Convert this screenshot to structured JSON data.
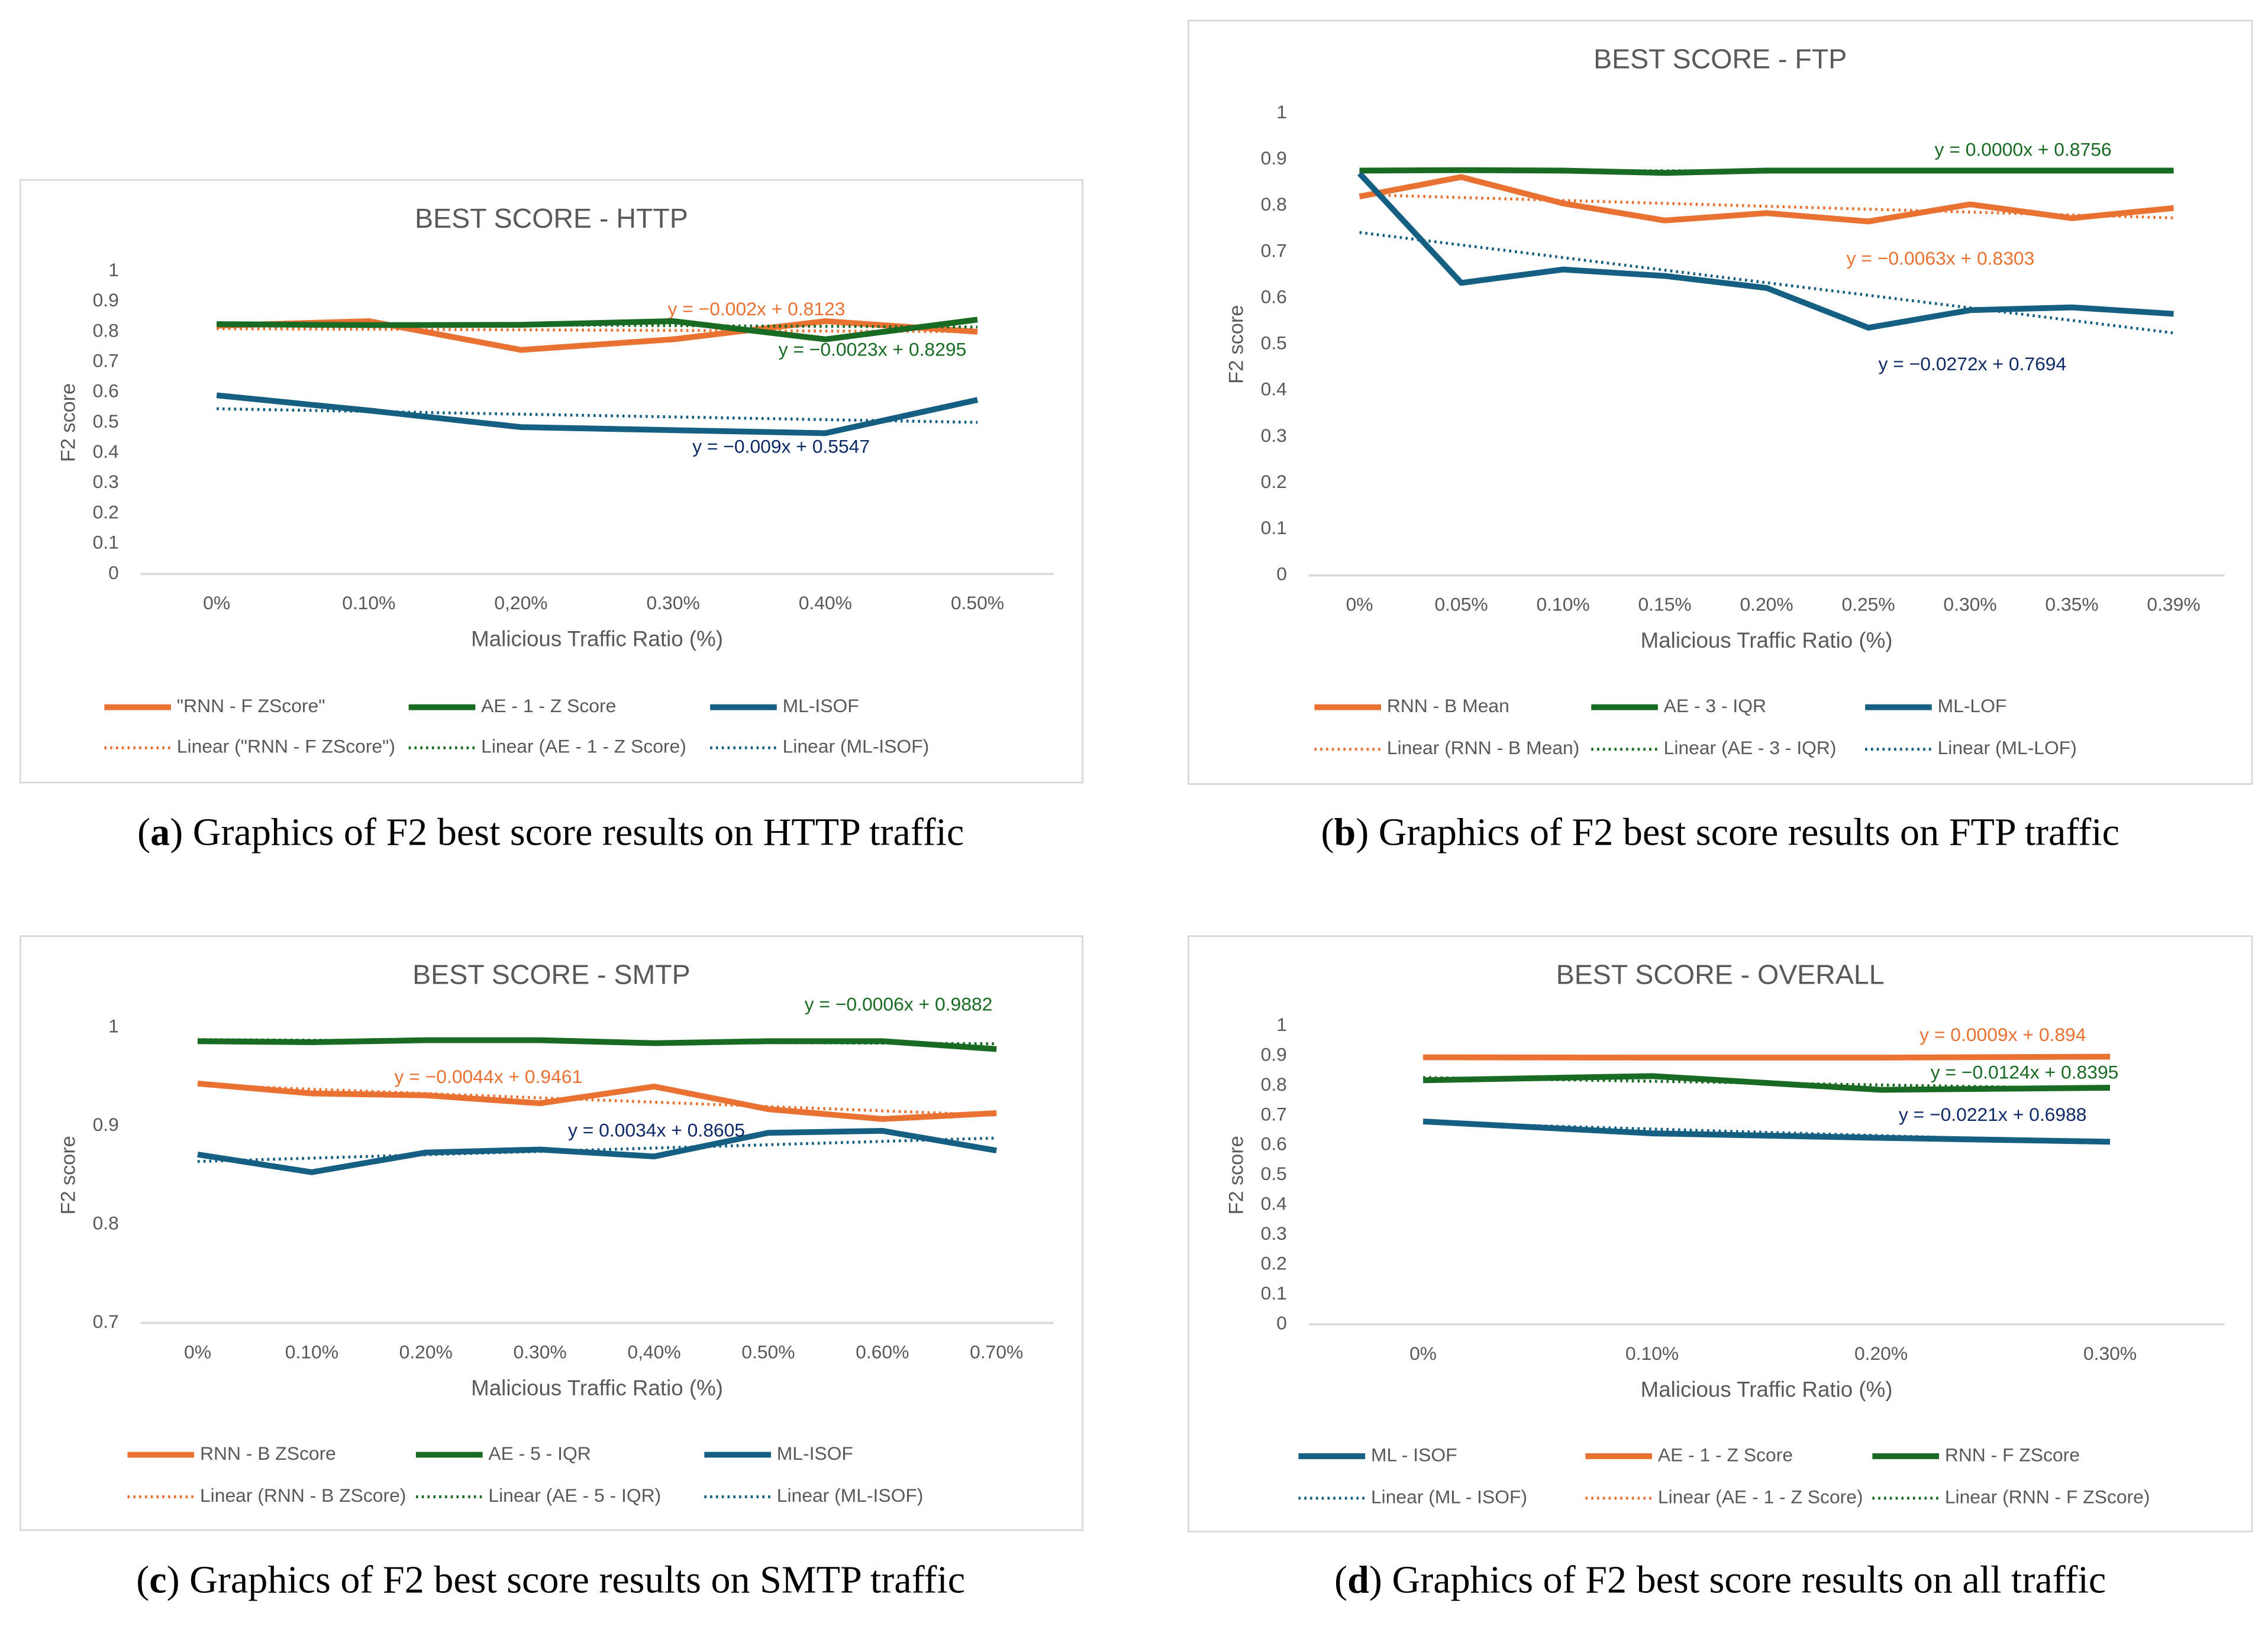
{
  "colors": {
    "orange": "#E97132",
    "green": "#196B24",
    "blue": "#156082",
    "navy": "#0E2A66",
    "axis": "#595959",
    "grid": "#D9D9D9"
  },
  "chart_data": [
    {
      "id": "a",
      "type": "line",
      "title": "BEST SCORE - HTTP",
      "xlabel": "Malicious Traffic Ratio (%)",
      "ylabel": "F2 score",
      "ylim": [
        0,
        1
      ],
      "ystep": 0.1,
      "categories": [
        "0%",
        "0.10%",
        "0,20%",
        "0.30%",
        "0.40%",
        "0.50%"
      ],
      "caption_letter": "a",
      "caption": " Graphics of F2 best score results on HTTP traffic",
      "series": [
        {
          "name": "\"RNN - F ZScore\"",
          "trend_name": "Linear (\"RNN - F ZScore\")",
          "color": "orange",
          "values": [
            0.82,
            0.835,
            0.74,
            0.775,
            0.835,
            0.8
          ],
          "trend": {
            "m": -0.002,
            "b": 0.8123,
            "label": "y = −0.002x + 0.8123"
          }
        },
        {
          "name": "AE - 1 - Z Score",
          "trend_name": "Linear (AE - 1 - Z Score)",
          "color": "green",
          "values": [
            0.825,
            0.822,
            0.823,
            0.835,
            0.775,
            0.84
          ],
          "trend": {
            "m": -0.0023,
            "b": 0.8295,
            "label": "y = −0.0023x + 0.8295"
          }
        },
        {
          "name": "ML-ISOF",
          "trend_name": "Linear (ML-ISOF)",
          "color": "blue",
          "values": [
            0.59,
            0.54,
            0.485,
            0.475,
            0.465,
            0.575
          ],
          "trend": {
            "m": -0.009,
            "b": 0.5547,
            "label": "y = −0.009x + 0.5547"
          }
        }
      ]
    },
    {
      "id": "b",
      "type": "line",
      "title": "BEST SCORE - FTP",
      "xlabel": "Malicious Traffic Ratio (%)",
      "ylabel": "F2 score",
      "ylim": [
        0,
        1
      ],
      "ystep": 0.1,
      "categories": [
        "0%",
        "0.05%",
        "0.10%",
        "0.15%",
        "0.20%",
        "0.25%",
        "0.30%",
        "0.35%",
        "0.39%"
      ],
      "caption_letter": "b",
      "caption": " Graphics of F2 best score results on FTP traffic",
      "series": [
        {
          "name": "RNN - B Mean",
          "trend_name": "Linear (RNN - B Mean)",
          "color": "orange",
          "values": [
            0.82,
            0.862,
            0.805,
            0.768,
            0.784,
            0.766,
            0.803,
            0.773,
            0.795
          ],
          "trend": {
            "m": -0.0063,
            "b": 0.8303,
            "label": "y = −0.0063x + 0.8303"
          }
        },
        {
          "name": "AE - 3 - IQR",
          "trend_name": "Linear (AE - 3 - IQR)",
          "color": "green",
          "values": [
            0.876,
            0.877,
            0.876,
            0.871,
            0.876,
            0.876,
            0.876,
            0.876,
            0.876
          ],
          "trend": {
            "m": 0.0,
            "b": 0.8756,
            "label": "y = 0.0000x + 0.8756"
          }
        },
        {
          "name": "ML-LOF",
          "trend_name": "Linear (ML-LOF)",
          "color": "blue",
          "values": [
            0.87,
            0.633,
            0.662,
            0.648,
            0.622,
            0.536,
            0.574,
            0.58,
            0.566
          ],
          "trend": {
            "m": -0.0272,
            "b": 0.7694,
            "label": "y = −0.0272x + 0.7694"
          }
        }
      ]
    },
    {
      "id": "c",
      "type": "line",
      "title": "BEST SCORE - SMTP",
      "xlabel": "Malicious Traffic Ratio (%)",
      "ylabel": "F2 score",
      "ylim": [
        0.7,
        1
      ],
      "ystep": 0.1,
      "categories": [
        "0%",
        "0.10%",
        "0.20%",
        "0.30%",
        "0,40%",
        "0.50%",
        "0.60%",
        "0.70%"
      ],
      "caption_letter": "c",
      "caption": " Graphics of F2 best score results on SMTP traffic",
      "series": [
        {
          "name": "RNN - B ZScore",
          "trend_name": "Linear (RNN - B ZScore)",
          "color": "orange",
          "values": [
            0.943,
            0.933,
            0.931,
            0.923,
            0.94,
            0.917,
            0.907,
            0.913
          ],
          "trend": {
            "m": -0.0044,
            "b": 0.9461,
            "label": "y = −0.0044x + 0.9461"
          }
        },
        {
          "name": "AE - 5 - IQR",
          "trend_name": "Linear (AE - 5 - IQR)",
          "color": "green",
          "values": [
            0.986,
            0.985,
            0.987,
            0.987,
            0.984,
            0.986,
            0.986,
            0.978
          ],
          "trend": {
            "m": -0.0006,
            "b": 0.9882,
            "label": "y = −0.0006x + 0.9882"
          }
        },
        {
          "name": "ML-ISOF",
          "trend_name": "Linear (ML-ISOF)",
          "color": "blue",
          "values": [
            0.871,
            0.853,
            0.873,
            0.876,
            0.869,
            0.893,
            0.895,
            0.875
          ],
          "trend": {
            "m": 0.0034,
            "b": 0.8605,
            "label": "y = 0.0034x + 0.8605"
          }
        }
      ]
    },
    {
      "id": "d",
      "type": "line",
      "title": "BEST SCORE - OVERALL",
      "xlabel": "Malicious Traffic Ratio (%)",
      "ylabel": "F2 score",
      "ylim": [
        0,
        1
      ],
      "ystep": 0.1,
      "categories": [
        "0%",
        "0.10%",
        "0.20%",
        "0.30%"
      ],
      "caption_letter": "d",
      "caption": " Graphics of F2 best score results on all traffic",
      "series": [
        {
          "name": "ML - ISOF",
          "trend_name": "Linear (ML - ISOF)",
          "color": "blue",
          "values": [
            0.68,
            0.64,
            0.625,
            0.612
          ],
          "trend": {
            "m": -0.0221,
            "b": 0.6988,
            "label": "y = −0.0221x + 0.6988"
          }
        },
        {
          "name": "AE - 1 - Z Score",
          "trend_name": "Linear (AE - 1 - Z Score)",
          "color": "orange",
          "values": [
            0.895,
            0.894,
            0.894,
            0.897
          ],
          "trend": {
            "m": 0.0009,
            "b": 0.894,
            "label": "y = 0.0009x + 0.894"
          }
        },
        {
          "name": "RNN - F ZScore",
          "trend_name": "Linear (RNN - F ZScore)",
          "color": "green",
          "values": [
            0.818,
            0.832,
            0.786,
            0.793
          ],
          "trend": {
            "m": -0.0124,
            "b": 0.8395,
            "label": "y = −0.0124x + 0.8395"
          }
        }
      ]
    }
  ]
}
